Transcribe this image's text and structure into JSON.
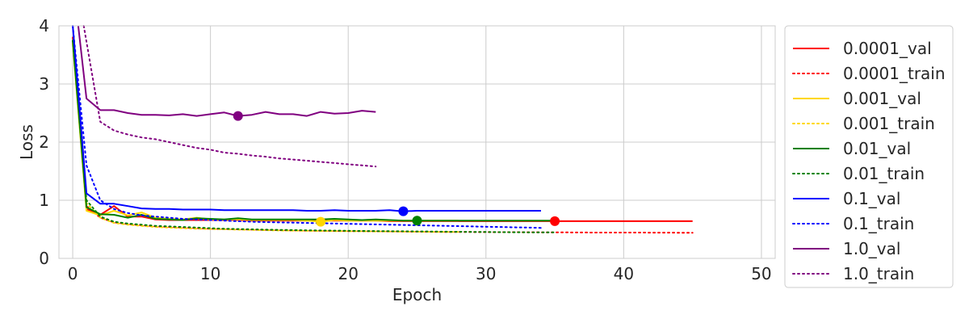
{
  "chart_data": {
    "type": "line",
    "xlabel": "Epoch",
    "ylabel": "Loss",
    "xlim": [
      -1,
      51
    ],
    "ylim": [
      0,
      4
    ],
    "xticks": [
      0,
      10,
      20,
      30,
      40,
      50
    ],
    "yticks": [
      0,
      1,
      2,
      3,
      4
    ],
    "grid": true,
    "legend": "outside-right",
    "series": [
      {
        "name": "0.0001_val",
        "color": "#ff0000",
        "style": "solid",
        "x": [
          0,
          1,
          2,
          3,
          4,
          5,
          6,
          7,
          8,
          9,
          10,
          11,
          12,
          13,
          14,
          15,
          16,
          17,
          18,
          19,
          20,
          21,
          22,
          23,
          24,
          25,
          26,
          27,
          28,
          29,
          30,
          31,
          32,
          33,
          34,
          35,
          36,
          37,
          38,
          39,
          40,
          41,
          42,
          43,
          44,
          45
        ],
        "y": [
          3.75,
          0.85,
          0.75,
          0.9,
          0.72,
          0.72,
          0.67,
          0.66,
          0.66,
          0.66,
          0.66,
          0.66,
          0.66,
          0.65,
          0.65,
          0.65,
          0.65,
          0.65,
          0.65,
          0.65,
          0.65,
          0.65,
          0.65,
          0.64,
          0.64,
          0.64,
          0.64,
          0.64,
          0.64,
          0.64,
          0.64,
          0.64,
          0.64,
          0.64,
          0.64,
          0.64,
          0.64,
          0.64,
          0.64,
          0.64,
          0.64,
          0.64,
          0.64,
          0.64,
          0.64,
          0.64
        ],
        "marker": [
          35,
          0.64
        ]
      },
      {
        "name": "0.0001_train",
        "color": "#ff0000",
        "style": "dotted",
        "x": [
          0,
          1,
          2,
          3,
          4,
          5,
          6,
          7,
          8,
          9,
          10,
          11,
          12,
          13,
          14,
          15,
          16,
          17,
          18,
          19,
          20,
          21,
          22,
          23,
          24,
          25,
          26,
          27,
          28,
          29,
          30,
          31,
          32,
          33,
          34,
          35,
          36,
          37,
          38,
          39,
          40,
          41,
          42,
          43,
          44,
          45
        ],
        "y": [
          3.8,
          0.9,
          0.7,
          0.62,
          0.59,
          0.57,
          0.55,
          0.54,
          0.53,
          0.52,
          0.51,
          0.505,
          0.5,
          0.495,
          0.49,
          0.485,
          0.48,
          0.478,
          0.475,
          0.472,
          0.47,
          0.468,
          0.466,
          0.464,
          0.462,
          0.46,
          0.458,
          0.456,
          0.455,
          0.454,
          0.453,
          0.452,
          0.451,
          0.45,
          0.449,
          0.448,
          0.447,
          0.446,
          0.445,
          0.445,
          0.444,
          0.444,
          0.443,
          0.443,
          0.442,
          0.442
        ]
      },
      {
        "name": "0.001_val",
        "color": "#ffd700",
        "style": "solid",
        "x": [
          0,
          1,
          2,
          3,
          4,
          5,
          6,
          7,
          8,
          9,
          10,
          11,
          12,
          13,
          14,
          15,
          16,
          17,
          18,
          19,
          20,
          21,
          22,
          23,
          24,
          25,
          26,
          27,
          28
        ],
        "y": [
          3.7,
          0.82,
          0.74,
          0.82,
          0.74,
          0.79,
          0.7,
          0.68,
          0.67,
          0.7,
          0.67,
          0.67,
          0.67,
          0.66,
          0.66,
          0.66,
          0.66,
          0.65,
          0.63,
          0.66,
          0.65,
          0.65,
          0.65,
          0.65,
          0.65,
          0.65,
          0.65,
          0.65,
          0.65
        ],
        "marker": [
          18,
          0.63
        ]
      },
      {
        "name": "0.001_train",
        "color": "#ffd700",
        "style": "dotted",
        "x": [
          0,
          1,
          2,
          3,
          4,
          5,
          6,
          7,
          8,
          9,
          10,
          11,
          12,
          13,
          14,
          15,
          16,
          17,
          18,
          19,
          20,
          21,
          22,
          23,
          24,
          25,
          26,
          27,
          28
        ],
        "y": [
          3.7,
          0.95,
          0.7,
          0.61,
          0.58,
          0.56,
          0.54,
          0.53,
          0.52,
          0.51,
          0.505,
          0.5,
          0.495,
          0.49,
          0.485,
          0.48,
          0.478,
          0.475,
          0.472,
          0.47,
          0.468,
          0.466,
          0.464,
          0.462,
          0.46,
          0.458,
          0.456,
          0.455,
          0.454
        ]
      },
      {
        "name": "0.01_val",
        "color": "#008000",
        "style": "solid",
        "x": [
          0,
          1,
          2,
          3,
          4,
          5,
          6,
          7,
          8,
          9,
          10,
          11,
          12,
          13,
          14,
          15,
          16,
          17,
          18,
          19,
          20,
          21,
          22,
          23,
          24,
          25,
          26,
          27,
          28,
          29,
          30,
          31,
          32,
          33,
          34,
          35
        ],
        "y": [
          3.75,
          0.88,
          0.76,
          0.75,
          0.7,
          0.75,
          0.68,
          0.67,
          0.66,
          0.69,
          0.68,
          0.67,
          0.69,
          0.67,
          0.67,
          0.67,
          0.67,
          0.67,
          0.67,
          0.68,
          0.67,
          0.66,
          0.67,
          0.66,
          0.65,
          0.65,
          0.65,
          0.65,
          0.65,
          0.65,
          0.65,
          0.65,
          0.65,
          0.65,
          0.65,
          0.65
        ],
        "marker": [
          25,
          0.65
        ]
      },
      {
        "name": "0.01_train",
        "color": "#008000",
        "style": "dotted",
        "x": [
          0,
          1,
          2,
          3,
          4,
          5,
          6,
          7,
          8,
          9,
          10,
          11,
          12,
          13,
          14,
          15,
          16,
          17,
          18,
          19,
          20,
          21,
          22,
          23,
          24,
          25,
          26,
          27,
          28,
          29,
          30,
          31,
          32,
          33,
          34,
          35
        ],
        "y": [
          3.75,
          1.0,
          0.72,
          0.63,
          0.6,
          0.58,
          0.56,
          0.55,
          0.54,
          0.53,
          0.52,
          0.51,
          0.505,
          0.5,
          0.495,
          0.49,
          0.487,
          0.484,
          0.481,
          0.478,
          0.475,
          0.472,
          0.47,
          0.468,
          0.466,
          0.464,
          0.462,
          0.46,
          0.458,
          0.456,
          0.454,
          0.452,
          0.45,
          0.449,
          0.448,
          0.447
        ]
      },
      {
        "name": "0.1_val",
        "color": "#0000ff",
        "style": "solid",
        "x": [
          0,
          1,
          2,
          3,
          4,
          5,
          6,
          7,
          8,
          9,
          10,
          11,
          12,
          13,
          14,
          15,
          16,
          17,
          18,
          19,
          20,
          21,
          22,
          23,
          24,
          25,
          26,
          27,
          28,
          29,
          30,
          31,
          32,
          33,
          34
        ],
        "y": [
          4.0,
          1.12,
          0.94,
          0.94,
          0.9,
          0.86,
          0.85,
          0.85,
          0.84,
          0.84,
          0.84,
          0.83,
          0.83,
          0.83,
          0.83,
          0.83,
          0.83,
          0.82,
          0.82,
          0.83,
          0.82,
          0.82,
          0.82,
          0.83,
          0.81,
          0.82,
          0.82,
          0.82,
          0.82,
          0.82,
          0.82,
          0.82,
          0.82,
          0.82,
          0.82
        ],
        "marker": [
          24,
          0.81
        ]
      },
      {
        "name": "0.1_train",
        "color": "#0000ff",
        "style": "dotted",
        "x": [
          0,
          1,
          2,
          3,
          4,
          5,
          6,
          7,
          8,
          9,
          10,
          11,
          12,
          13,
          14,
          15,
          16,
          17,
          18,
          19,
          20,
          21,
          22,
          23,
          24,
          25,
          26,
          27,
          28,
          29,
          30,
          31,
          32,
          33,
          34
        ],
        "y": [
          4.0,
          1.6,
          1.0,
          0.85,
          0.78,
          0.74,
          0.72,
          0.7,
          0.68,
          0.67,
          0.66,
          0.65,
          0.64,
          0.63,
          0.625,
          0.62,
          0.615,
          0.61,
          0.605,
          0.6,
          0.595,
          0.59,
          0.585,
          0.58,
          0.575,
          0.57,
          0.565,
          0.56,
          0.555,
          0.55,
          0.545,
          0.54,
          0.535,
          0.53,
          0.525
        ]
      },
      {
        "name": "1.0_val",
        "color": "#800080",
        "style": "solid",
        "x": [
          0.4,
          1,
          2,
          3,
          4,
          5,
          6,
          7,
          8,
          9,
          10,
          11,
          12,
          13,
          14,
          15,
          16,
          17,
          18,
          19,
          20,
          21,
          22
        ],
        "y": [
          4.0,
          2.75,
          2.55,
          2.55,
          2.5,
          2.47,
          2.47,
          2.46,
          2.48,
          2.45,
          2.48,
          2.51,
          2.45,
          2.47,
          2.52,
          2.48,
          2.48,
          2.45,
          2.52,
          2.49,
          2.5,
          2.54,
          2.52
        ],
        "marker": [
          12,
          2.45
        ]
      },
      {
        "name": "1.0_train",
        "color": "#800080",
        "style": "dotted",
        "x": [
          0.8,
          2,
          3,
          4,
          5,
          6,
          7,
          8,
          9,
          10,
          11,
          12,
          13,
          14,
          15,
          16,
          17,
          18,
          19,
          20,
          21,
          22
        ],
        "y": [
          4.0,
          2.35,
          2.2,
          2.13,
          2.08,
          2.05,
          2.0,
          1.95,
          1.9,
          1.87,
          1.82,
          1.8,
          1.77,
          1.75,
          1.72,
          1.7,
          1.68,
          1.66,
          1.64,
          1.62,
          1.6,
          1.58
        ]
      }
    ]
  }
}
